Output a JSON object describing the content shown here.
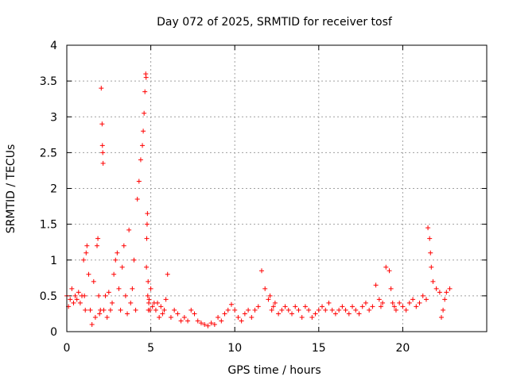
{
  "chart_data": {
    "type": "scatter",
    "title": "Day 072 of 2025, SRMTID for receiver tosf",
    "xlabel": "GPS time / hours",
    "ylabel": "SRMTID / TECUs",
    "xlim": [
      0,
      25
    ],
    "ylim": [
      0,
      4
    ],
    "xticks": [
      0,
      5,
      10,
      15,
      20
    ],
    "yticks": [
      0,
      0.5,
      1,
      1.5,
      2,
      2.5,
      3,
      3.5,
      4
    ],
    "xtick_labels": [
      "0",
      "5",
      "10",
      "15",
      "20"
    ],
    "ytick_labels": [
      "0",
      "0.5",
      "1",
      "1.5",
      "2",
      "2.5",
      "3",
      "3.5",
      "4"
    ],
    "grid": true,
    "marker": "+",
    "marker_color": "#ff0000",
    "series": [
      {
        "name": "SRMTID",
        "x": [
          0.0,
          0.1,
          0.2,
          0.3,
          0.4,
          0.5,
          0.6,
          0.7,
          0.8,
          0.9,
          1.0,
          1.05,
          1.1,
          1.15,
          1.2,
          1.3,
          1.4,
          1.5,
          1.6,
          1.7,
          1.8,
          1.85,
          1.9,
          1.95,
          2.0,
          2.05,
          2.1,
          2.12,
          2.14,
          2.16,
          2.2,
          2.3,
          2.4,
          2.5,
          2.6,
          2.7,
          2.8,
          2.9,
          3.0,
          3.1,
          3.2,
          3.3,
          3.4,
          3.5,
          3.6,
          3.7,
          3.8,
          3.9,
          4.0,
          4.1,
          4.2,
          4.3,
          4.4,
          4.5,
          4.55,
          4.6,
          4.65,
          4.7,
          4.72,
          4.74,
          4.76,
          4.78,
          4.8,
          4.82,
          4.84,
          4.86,
          4.88,
          4.9,
          4.95,
          5.0,
          5.1,
          5.2,
          5.3,
          5.4,
          5.5,
          5.6,
          5.7,
          5.8,
          5.9,
          6.0,
          6.2,
          6.4,
          6.6,
          6.8,
          7.0,
          7.2,
          7.4,
          7.6,
          7.8,
          8.0,
          8.2,
          8.4,
          8.6,
          8.8,
          9.0,
          9.2,
          9.4,
          9.6,
          9.8,
          10.0,
          10.2,
          10.4,
          10.6,
          10.8,
          11.0,
          11.2,
          11.4,
          11.6,
          11.8,
          12.0,
          12.1,
          12.2,
          12.3,
          12.4,
          12.6,
          12.8,
          13.0,
          13.2,
          13.4,
          13.6,
          13.8,
          14.0,
          14.2,
          14.4,
          14.6,
          14.8,
          15.0,
          15.2,
          15.4,
          15.6,
          15.8,
          16.0,
          16.2,
          16.4,
          16.6,
          16.8,
          17.0,
          17.2,
          17.4,
          17.6,
          17.8,
          18.0,
          18.2,
          18.4,
          18.6,
          18.7,
          18.8,
          19.0,
          19.2,
          19.3,
          19.4,
          19.5,
          19.6,
          19.8,
          20.0,
          20.2,
          20.4,
          20.6,
          20.8,
          21.0,
          21.2,
          21.4,
          21.5,
          21.6,
          21.65,
          21.7,
          21.8,
          22.0,
          22.2,
          22.3,
          22.4,
          22.5,
          22.6,
          22.8
        ],
        "y": [
          0.5,
          0.35,
          0.45,
          0.6,
          0.4,
          0.5,
          0.45,
          0.55,
          0.4,
          0.5,
          1.0,
          0.5,
          0.3,
          1.1,
          1.2,
          0.8,
          0.3,
          0.1,
          0.7,
          0.2,
          1.2,
          1.3,
          0.5,
          0.25,
          0.3,
          3.4,
          2.9,
          2.6,
          2.5,
          2.35,
          0.3,
          0.5,
          0.2,
          0.55,
          0.3,
          0.4,
          0.8,
          1.0,
          1.1,
          0.6,
          0.3,
          0.9,
          1.2,
          0.5,
          0.25,
          1.42,
          0.4,
          0.6,
          1.0,
          0.3,
          1.85,
          2.1,
          2.4,
          2.6,
          2.8,
          3.05,
          3.35,
          3.6,
          3.55,
          0.9,
          1.3,
          1.5,
          1.65,
          0.5,
          0.7,
          0.3,
          0.4,
          0.45,
          0.3,
          0.6,
          0.35,
          0.4,
          0.3,
          0.4,
          0.2,
          0.35,
          0.25,
          0.3,
          0.45,
          0.8,
          0.2,
          0.3,
          0.25,
          0.15,
          0.2,
          0.15,
          0.3,
          0.25,
          0.15,
          0.12,
          0.1,
          0.08,
          0.12,
          0.1,
          0.2,
          0.15,
          0.25,
          0.3,
          0.38,
          0.3,
          0.2,
          0.15,
          0.25,
          0.3,
          0.2,
          0.3,
          0.35,
          0.85,
          0.6,
          0.45,
          0.5,
          0.3,
          0.35,
          0.4,
          0.25,
          0.3,
          0.35,
          0.3,
          0.25,
          0.35,
          0.3,
          0.2,
          0.35,
          0.3,
          0.2,
          0.25,
          0.3,
          0.35,
          0.3,
          0.4,
          0.3,
          0.25,
          0.3,
          0.35,
          0.3,
          0.25,
          0.35,
          0.3,
          0.25,
          0.35,
          0.4,
          0.3,
          0.35,
          0.65,
          0.45,
          0.35,
          0.4,
          0.9,
          0.85,
          0.6,
          0.4,
          0.35,
          0.3,
          0.4,
          0.35,
          0.3,
          0.4,
          0.45,
          0.35,
          0.4,
          0.5,
          0.45,
          1.45,
          1.3,
          1.1,
          0.9,
          0.7,
          0.6,
          0.55,
          0.2,
          0.3,
          0.45,
          0.55,
          0.6
        ]
      }
    ]
  }
}
